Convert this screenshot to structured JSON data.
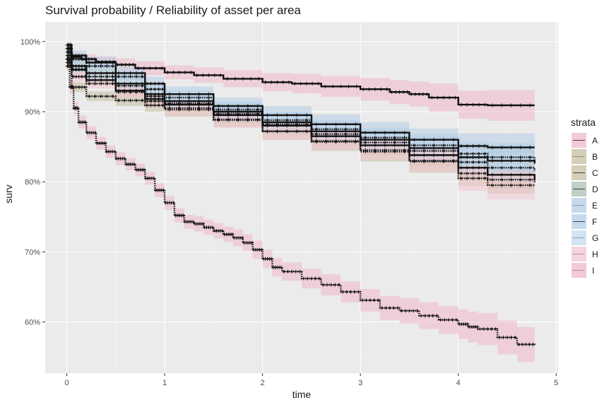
{
  "chart_data": {
    "type": "line",
    "title": "Survival probability / Reliability of asset per area",
    "xlabel": "time",
    "ylabel": "surv",
    "xlim": [
      -0.22,
      5.02
    ],
    "ylim": [
      0.527,
      1.028
    ],
    "x_ticks": [
      0,
      1,
      2,
      3,
      4,
      5
    ],
    "x_tick_labels": [
      "0",
      "1",
      "2",
      "3",
      "4",
      "5"
    ],
    "y_ticks": [
      0.6,
      0.7,
      0.8,
      0.9,
      1.0
    ],
    "y_tick_labels": [
      "60%",
      "70%",
      "80%",
      "90%",
      "100%"
    ],
    "grid": true,
    "legend": {
      "title": "strata",
      "position": "right"
    },
    "colors": {
      "panel": "#ebebeb",
      "grid_major": "#ffffff",
      "grid_minor": "#f4f4f4",
      "line": "#111111"
    },
    "series": [
      {
        "name": "A",
        "band_color": "#f0b8c8",
        "line_style": "solid",
        "x": [
          0,
          0.05,
          0.15,
          0.3,
          0.5,
          0.7,
          1.0,
          1.3,
          1.6,
          2.0,
          2.3,
          2.6,
          3.0,
          3.3,
          3.5,
          3.7,
          4.0,
          4.3,
          4.78
        ],
        "y": [
          0.99,
          0.978,
          0.975,
          0.971,
          0.967,
          0.962,
          0.956,
          0.952,
          0.947,
          0.942,
          0.94,
          0.936,
          0.932,
          0.928,
          0.925,
          0.92,
          0.91,
          0.909,
          0.909
        ],
        "lower": [
          0.984,
          0.972,
          0.968,
          0.963,
          0.958,
          0.952,
          0.946,
          0.941,
          0.935,
          0.929,
          0.926,
          0.921,
          0.916,
          0.911,
          0.907,
          0.9,
          0.89,
          0.887,
          0.887
        ],
        "upper": [
          0.996,
          0.984,
          0.982,
          0.979,
          0.976,
          0.972,
          0.966,
          0.963,
          0.959,
          0.955,
          0.954,
          0.951,
          0.948,
          0.945,
          0.943,
          0.94,
          0.93,
          0.931,
          0.931
        ]
      },
      {
        "name": "B",
        "band_color": "#c7bfa1",
        "line_style": "dotted",
        "x": [
          0,
          0.05,
          0.2,
          0.5,
          0.8,
          1.0,
          1.5,
          2.0,
          2.5,
          3.0,
          3.5,
          4.0,
          4.3,
          4.78
        ],
        "y": [
          0.965,
          0.935,
          0.922,
          0.916,
          0.909,
          0.903,
          0.889,
          0.872,
          0.857,
          0.843,
          0.829,
          0.812,
          0.803,
          0.798
        ],
        "lower": [
          0.958,
          0.928,
          0.915,
          0.908,
          0.9,
          0.893,
          0.878,
          0.86,
          0.844,
          0.829,
          0.813,
          0.794,
          0.783,
          0.777
        ],
        "upper": [
          0.972,
          0.942,
          0.929,
          0.924,
          0.918,
          0.913,
          0.9,
          0.884,
          0.87,
          0.857,
          0.845,
          0.83,
          0.823,
          0.819
        ]
      },
      {
        "name": "C",
        "band_color": "#c7bfa1",
        "line_style": "solid",
        "x": [
          0,
          0.05,
          0.2,
          0.5,
          0.8,
          1.0,
          1.5,
          2.0,
          2.5,
          3.0,
          3.5,
          4.0,
          4.3,
          4.78
        ],
        "y": [
          0.975,
          0.96,
          0.945,
          0.93,
          0.918,
          0.91,
          0.895,
          0.88,
          0.865,
          0.852,
          0.838,
          0.82,
          0.81,
          0.802
        ],
        "lower": [
          0.968,
          0.953,
          0.938,
          0.922,
          0.909,
          0.9,
          0.884,
          0.868,
          0.852,
          0.838,
          0.822,
          0.802,
          0.79,
          0.781
        ],
        "upper": [
          0.982,
          0.967,
          0.952,
          0.938,
          0.927,
          0.92,
          0.906,
          0.892,
          0.878,
          0.866,
          0.854,
          0.838,
          0.83,
          0.823
        ]
      },
      {
        "name": "D",
        "band_color": "#a9c0b4",
        "line_style": "solid",
        "x": [
          0,
          0.05,
          0.2,
          0.5,
          0.8,
          1.0,
          1.5,
          2.0,
          2.5,
          3.0,
          3.5,
          4.0,
          4.3,
          4.78
        ],
        "y": [
          0.985,
          0.965,
          0.955,
          0.94,
          0.925,
          0.915,
          0.9,
          0.885,
          0.872,
          0.86,
          0.848,
          0.835,
          0.83,
          0.826
        ],
        "lower": [
          0.978,
          0.958,
          0.948,
          0.932,
          0.916,
          0.905,
          0.889,
          0.873,
          0.859,
          0.846,
          0.832,
          0.816,
          0.808,
          0.802
        ],
        "upper": [
          0.992,
          0.972,
          0.962,
          0.948,
          0.934,
          0.925,
          0.911,
          0.897,
          0.885,
          0.874,
          0.864,
          0.854,
          0.852,
          0.85
        ]
      },
      {
        "name": "E",
        "band_color": "#b4cde6",
        "line_style": "dotted",
        "x": [
          0,
          0.05,
          0.2,
          0.5,
          0.8,
          1.0,
          1.5,
          2.0,
          2.5,
          3.0,
          3.5,
          4.0,
          4.3,
          4.78
        ],
        "y": [
          0.99,
          0.975,
          0.965,
          0.95,
          0.932,
          0.92,
          0.903,
          0.888,
          0.875,
          0.863,
          0.852,
          0.84,
          0.835,
          0.828
        ],
        "lower": [
          0.983,
          0.968,
          0.958,
          0.942,
          0.923,
          0.91,
          0.892,
          0.876,
          0.862,
          0.849,
          0.836,
          0.822,
          0.815,
          0.806
        ],
        "upper": [
          0.997,
          0.982,
          0.972,
          0.958,
          0.941,
          0.93,
          0.914,
          0.9,
          0.888,
          0.877,
          0.868,
          0.858,
          0.855,
          0.85
        ]
      },
      {
        "name": "F",
        "band_color": "#b4cde6",
        "line_style": "solid",
        "x": [
          0,
          0.05,
          0.2,
          0.5,
          0.8,
          1.0,
          1.5,
          2.0,
          2.5,
          3.0,
          3.5,
          4.0,
          4.3,
          4.78
        ],
        "y": [
          0.995,
          0.98,
          0.97,
          0.955,
          0.94,
          0.925,
          0.908,
          0.895,
          0.882,
          0.87,
          0.86,
          0.851,
          0.849,
          0.849
        ],
        "lower": [
          0.988,
          0.973,
          0.962,
          0.946,
          0.93,
          0.914,
          0.896,
          0.882,
          0.868,
          0.855,
          0.844,
          0.833,
          0.829,
          0.827
        ],
        "upper": [
          1.0,
          0.987,
          0.978,
          0.964,
          0.95,
          0.936,
          0.92,
          0.908,
          0.896,
          0.885,
          0.876,
          0.869,
          0.869,
          0.871
        ]
      },
      {
        "name": "G",
        "band_color": "#c4d9ee",
        "line_style": "dotted",
        "x": [
          0,
          0.05,
          0.2,
          0.5,
          0.8,
          1.0,
          1.5,
          2.0,
          2.5,
          3.0,
          3.5,
          4.0,
          4.3,
          4.78
        ],
        "y": [
          0.98,
          0.96,
          0.95,
          0.937,
          0.922,
          0.912,
          0.897,
          0.882,
          0.868,
          0.856,
          0.844,
          0.828,
          0.82,
          0.815
        ],
        "lower": [
          0.973,
          0.953,
          0.943,
          0.929,
          0.913,
          0.902,
          0.886,
          0.87,
          0.855,
          0.842,
          0.828,
          0.81,
          0.8,
          0.793
        ],
        "upper": [
          0.987,
          0.967,
          0.957,
          0.945,
          0.931,
          0.922,
          0.908,
          0.894,
          0.881,
          0.87,
          0.86,
          0.846,
          0.84,
          0.837
        ]
      },
      {
        "name": "H",
        "band_color": "#f2c6d2",
        "line_style": "dotted",
        "x": [
          0,
          0.05,
          0.2,
          0.5,
          0.8,
          1.0,
          1.5,
          2.0,
          2.5,
          3.0,
          3.5,
          4.0,
          4.3,
          4.78
        ],
        "y": [
          0.97,
          0.95,
          0.94,
          0.928,
          0.915,
          0.905,
          0.888,
          0.872,
          0.858,
          0.845,
          0.83,
          0.805,
          0.795,
          0.794
        ],
        "lower": [
          0.963,
          0.943,
          0.933,
          0.92,
          0.906,
          0.895,
          0.877,
          0.86,
          0.845,
          0.831,
          0.814,
          0.787,
          0.775,
          0.772
        ],
        "upper": [
          0.977,
          0.957,
          0.947,
          0.936,
          0.924,
          0.915,
          0.899,
          0.884,
          0.871,
          0.859,
          0.846,
          0.823,
          0.815,
          0.816
        ]
      },
      {
        "name": "I",
        "band_color": "#f0b8c8",
        "line_style": "dotted",
        "x": [
          0,
          0.03,
          0.07,
          0.12,
          0.2,
          0.3,
          0.4,
          0.5,
          0.6,
          0.7,
          0.8,
          0.9,
          1.0,
          1.1,
          1.2,
          1.3,
          1.4,
          1.5,
          1.6,
          1.7,
          1.8,
          1.9,
          2.0,
          2.1,
          2.2,
          2.4,
          2.6,
          2.8,
          3.0,
          3.2,
          3.4,
          3.6,
          3.8,
          4.0,
          4.1,
          4.2,
          4.4,
          4.6,
          4.78
        ],
        "y": [
          0.975,
          0.935,
          0.905,
          0.885,
          0.87,
          0.855,
          0.843,
          0.833,
          0.825,
          0.817,
          0.805,
          0.788,
          0.77,
          0.752,
          0.743,
          0.74,
          0.735,
          0.73,
          0.725,
          0.72,
          0.713,
          0.703,
          0.69,
          0.678,
          0.672,
          0.662,
          0.653,
          0.643,
          0.631,
          0.62,
          0.616,
          0.609,
          0.603,
          0.597,
          0.593,
          0.59,
          0.578,
          0.568,
          0.567
        ],
        "lower": [
          0.968,
          0.926,
          0.896,
          0.876,
          0.861,
          0.846,
          0.834,
          0.824,
          0.816,
          0.808,
          0.796,
          0.778,
          0.76,
          0.742,
          0.733,
          0.729,
          0.724,
          0.719,
          0.714,
          0.708,
          0.701,
          0.69,
          0.677,
          0.665,
          0.659,
          0.648,
          0.638,
          0.628,
          0.615,
          0.603,
          0.598,
          0.59,
          0.583,
          0.576,
          0.571,
          0.567,
          0.554,
          0.543,
          0.547
        ],
        "upper": [
          0.982,
          0.944,
          0.914,
          0.894,
          0.879,
          0.864,
          0.852,
          0.842,
          0.834,
          0.826,
          0.814,
          0.798,
          0.78,
          0.762,
          0.753,
          0.751,
          0.746,
          0.741,
          0.736,
          0.732,
          0.725,
          0.716,
          0.703,
          0.691,
          0.685,
          0.676,
          0.668,
          0.658,
          0.647,
          0.637,
          0.634,
          0.628,
          0.623,
          0.618,
          0.615,
          0.613,
          0.602,
          0.593,
          0.587
        ]
      }
    ]
  }
}
